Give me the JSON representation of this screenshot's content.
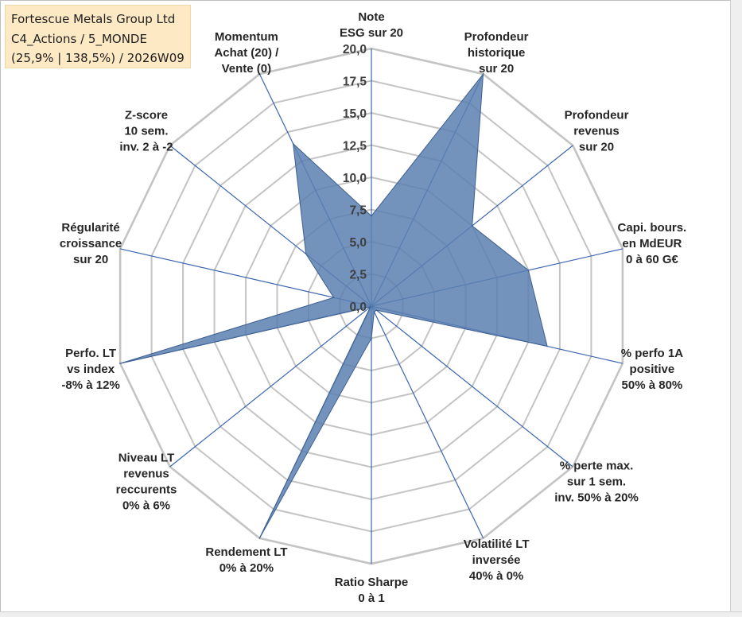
{
  "title_box": {
    "company": "Fortescue Metals Group Ltd",
    "portfolio": "C4_Actions / 5_MONDE",
    "stats": "(25,9% | 138,5%) / 2026W09"
  },
  "chart_data": {
    "type": "radar",
    "title": "Fortescue Metals Group Ltd",
    "r_range": [
      0,
      20
    ],
    "r_ticks": [
      "0,0",
      "2,5",
      "5,0",
      "7,5",
      "10,0",
      "12,5",
      "15,0",
      "17,5",
      "20,0"
    ],
    "grid": true,
    "fill_color": "#5b80b2",
    "axis_color": "#3b66b0",
    "grid_color": "#c4c4c4",
    "categories": [
      [
        "Note",
        "ESG sur 20"
      ],
      [
        "Profondeur",
        "historique",
        "sur 20"
      ],
      [
        "Profondeur",
        "revenus",
        "sur 20"
      ],
      [
        "Capi. bours.",
        "en MdEUR",
        "0 à 60 G€"
      ],
      [
        "% perfo 1A",
        "positive",
        "50% à 80%"
      ],
      [
        "% perte max.",
        "sur 1 sem.",
        "inv. 50% à 20%"
      ],
      [
        "Volatilité LT",
        "inversée",
        "40% à 0%"
      ],
      [
        "Ratio Sharpe",
        "0 à 1"
      ],
      [
        "Rendement LT",
        "0% à 20%"
      ],
      [
        "Niveau LT",
        "revenus",
        "reccurents",
        "0% à 6%"
      ],
      [
        "Perfo. LT",
        "vs index",
        "-8% à 12%"
      ],
      [
        "Régularité",
        "croissance",
        "sur 20"
      ],
      [
        "Z-score",
        "10 sem.",
        "inv. 2 à -2"
      ],
      [
        "Momentum",
        "Achat (20) /",
        "Vente (0)"
      ]
    ],
    "values": [
      7,
      20,
      10,
      12.5,
      14,
      0.5,
      0.5,
      2.5,
      20,
      0.1,
      20,
      3,
      6.5,
      14
    ]
  }
}
